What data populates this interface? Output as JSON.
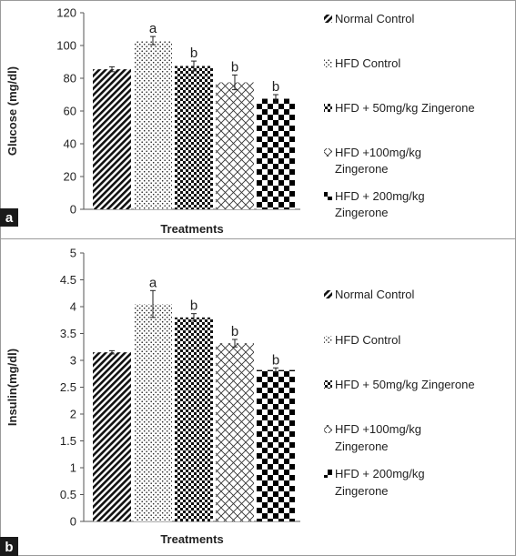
{
  "chart_data": [
    {
      "type": "bar",
      "panel_label": "a",
      "xlabel": "Treatments",
      "ylabel": "Glucose (mg/dl)",
      "ylim": [
        0,
        120
      ],
      "yticks": [
        "0",
        "20",
        "40",
        "60",
        "80",
        "100",
        "120"
      ],
      "categories": [
        "Normal Control",
        "HFD Control",
        "HFD + 50mg/kg Zingerone",
        "HFD +100mg/kg Zingerone",
        "HFD + 200mg/kg Zingerone"
      ],
      "values": [
        85.5,
        103,
        87.5,
        77.5,
        67.5
      ],
      "errors": [
        1.5,
        2.5,
        3,
        4.5,
        2.5
      ],
      "significance": [
        "",
        "a",
        "b",
        "b",
        "b"
      ],
      "legend": {
        "position": "right",
        "entries": [
          {
            "lines": [
              "Normal Control"
            ],
            "pattern": "diag"
          },
          {
            "lines": [
              "HFD Control"
            ],
            "pattern": "dots"
          },
          {
            "lines": [
              "HFD + 50mg/kg Zingerone"
            ],
            "pattern": "check"
          },
          {
            "lines": [
              "HFD +100mg/kg",
              "Zingerone"
            ],
            "pattern": "cross"
          },
          {
            "lines": [
              "HFD + 200mg/kg",
              "Zingerone"
            ],
            "pattern": "bigcheck"
          }
        ]
      }
    },
    {
      "type": "bar",
      "panel_label": "b",
      "xlabel": "Treatments",
      "ylabel": "Insulin(mg/dl)",
      "ylim": [
        0,
        5
      ],
      "yticks": [
        "0",
        "0.5",
        "1",
        "1.5",
        "2",
        "2.5",
        "3",
        "3.5",
        "4",
        "4.5",
        "5"
      ],
      "categories": [
        "Normal Control",
        "HFD Control",
        "HFD + 50mg/kg Zingerone",
        "HFD +100mg/kg Zingerone",
        "HFD + 200mg/kg Zingerone"
      ],
      "values": [
        3.15,
        4.05,
        3.8,
        3.32,
        2.82
      ],
      "errors": [
        0.03,
        0.25,
        0.07,
        0.07,
        0.04
      ],
      "significance": [
        "",
        "a",
        "b",
        "b",
        "b"
      ],
      "legend": {
        "position": "right",
        "entries": [
          {
            "lines": [
              "Normal Control"
            ],
            "pattern": "diag"
          },
          {
            "lines": [
              "HFD Control"
            ],
            "pattern": "dots"
          },
          {
            "lines": [
              "HFD + 50mg/kg Zingerone"
            ],
            "pattern": "check"
          },
          {
            "lines": [
              "HFD +100mg/kg",
              "Zingerone"
            ],
            "pattern": "cross"
          },
          {
            "lines": [
              "HFD + 200mg/kg",
              "Zingerone"
            ],
            "pattern": "bigcheck"
          }
        ]
      }
    }
  ]
}
